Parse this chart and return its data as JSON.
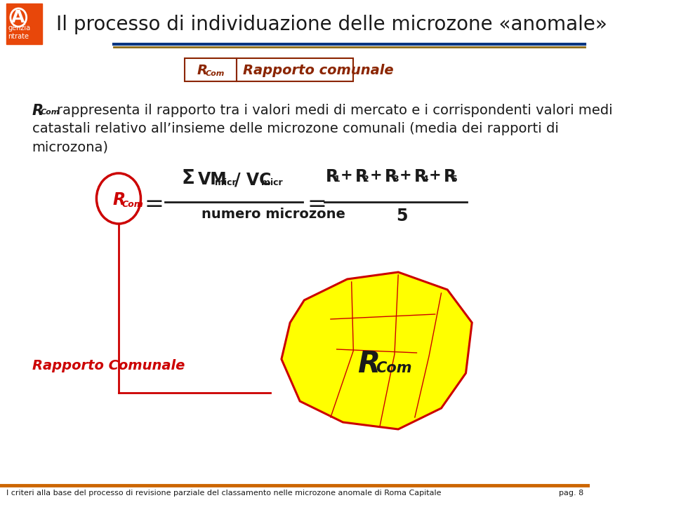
{
  "title": "Il processo di individuazione delle microzone «anomale»",
  "footer_left": "I criteri alla base del processo di revisione parziale del classamento nelle microzone anomale di Roma Capitale",
  "footer_right": "pag. 8",
  "legend_label2": "Rapporto comunale",
  "body_text_line1": "rappresenta il rapporto tra i valori medi di mercato e i corrispondenti valori medi",
  "body_text_line2": "catastali relativo all’insieme delle microzone comunali (media dei rapporti di",
  "body_text_line3": "microzona)",
  "formula_denominator": "numero microzone",
  "arrow_label": "Rapporto Comunale",
  "header_line_color": "#8B6914",
  "header_line_color2": "#003580",
  "title_color": "#1a1a1a",
  "body_color": "#1a1a1a",
  "rcm_circle_color": "#cc0000",
  "rcm_text_color": "#cc0000",
  "arrow_color": "#cc0000",
  "arrow_label_color": "#cc0000",
  "legend_box_color": "#8B2500",
  "formula_color": "#1a1a1a",
  "bg_color": "#ffffff",
  "footer_line_color": "#cc6600",
  "shape_fill": "#ffff00",
  "shape_edge": "#cc0000"
}
